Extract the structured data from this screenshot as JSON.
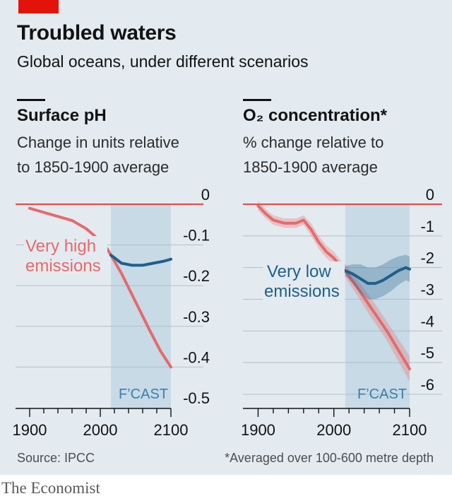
{
  "header": {
    "title": "Troubled waters",
    "subtitle": "Global oceans, under different scenarios"
  },
  "colors": {
    "background": "#e3ebf0",
    "accent_red": "#e3120b",
    "high_emissions": "#e8696b",
    "low_emissions": "#1f5f8b",
    "forecast_band": "#c2d7e4"
  },
  "chart_data": [
    {
      "type": "line",
      "title": "Surface pH",
      "subtitle_line1": "Change in units relative",
      "subtitle_line2": "to 1850-1900 average",
      "xlim": [
        1880,
        2100
      ],
      "ylim": [
        -0.5,
        0
      ],
      "yticks": [
        0,
        -0.1,
        -0.2,
        -0.3,
        -0.4,
        -0.5
      ],
      "ytick_labels": [
        "0",
        "-0.1",
        "-0.2",
        "-0.3",
        "-0.4",
        "-0.5"
      ],
      "xticks": [
        1900,
        2000,
        2100
      ],
      "xtick_labels": [
        "1900",
        "2000",
        "2100"
      ],
      "forecast": {
        "label": "F’CAST",
        "start": 2015,
        "end": 2100
      },
      "series": [
        {
          "name": "Very high emissions",
          "label_line1": "Very high",
          "label_line2": "emissions",
          "x": [
            1900,
            1920,
            1940,
            1960,
            1980,
            1990,
            2000,
            2010,
            2015,
            2030,
            2050,
            2070,
            2085,
            2100
          ],
          "y": [
            -0.01,
            -0.02,
            -0.03,
            -0.04,
            -0.06,
            -0.075,
            -0.09,
            -0.11,
            -0.125,
            -0.17,
            -0.24,
            -0.31,
            -0.36,
            -0.4
          ]
        },
        {
          "name": "Very low emissions",
          "x": [
            2015,
            2030,
            2045,
            2060,
            2075,
            2090,
            2100
          ],
          "y": [
            -0.125,
            -0.145,
            -0.15,
            -0.15,
            -0.145,
            -0.14,
            -0.135
          ]
        }
      ]
    },
    {
      "type": "line",
      "title": "O₂ concentration*",
      "subtitle_line1": "% change relative to",
      "subtitle_line2": "1850-1900 average",
      "xlim": [
        1880,
        2100
      ],
      "ylim": [
        -6,
        0
      ],
      "yticks": [
        0,
        -1,
        -2,
        -3,
        -4,
        -5,
        -6
      ],
      "ytick_labels": [
        "0",
        "-1",
        "-2",
        "-3",
        "-4",
        "-5",
        "-6"
      ],
      "xticks": [
        1900,
        2000,
        2100
      ],
      "xtick_labels": [
        "1900",
        "2000",
        "2100"
      ],
      "forecast": {
        "label": "F’CAST",
        "start": 2015,
        "end": 2100
      },
      "series": [
        {
          "name": "Very high emissions",
          "x": [
            1900,
            1910,
            1920,
            1935,
            1950,
            1960,
            1970,
            1980,
            1990,
            2000,
            2010,
            2015,
            2030,
            2050,
            2070,
            2085,
            2100
          ],
          "y": [
            -0.05,
            -0.3,
            -0.5,
            -0.6,
            -0.6,
            -0.5,
            -0.8,
            -1.2,
            -1.5,
            -1.7,
            -2.0,
            -2.1,
            -2.6,
            -3.3,
            -4.0,
            -4.6,
            -5.2
          ],
          "band": [
            0.15,
            0.15,
            0.15,
            0.15,
            0.15,
            0.15,
            0.2,
            0.2,
            0.2,
            0.2,
            0.2,
            0.2,
            0.25,
            0.3,
            0.3,
            0.35,
            0.4
          ]
        },
        {
          "name": "Very low emissions",
          "label_line1": "Very low",
          "label_line2": "emissions",
          "x": [
            2015,
            2025,
            2035,
            2045,
            2055,
            2065,
            2075,
            2085,
            2095,
            2100
          ],
          "y": [
            -2.1,
            -2.2,
            -2.35,
            -2.5,
            -2.5,
            -2.4,
            -2.25,
            -2.1,
            -2.0,
            -2.05
          ],
          "band": [
            0.15,
            0.3,
            0.45,
            0.5,
            0.5,
            0.5,
            0.5,
            0.45,
            0.4,
            0.4
          ]
        }
      ]
    }
  ],
  "footer": {
    "source": "Source: IPCC",
    "note": "*Averaged over 100-600 metre depth"
  },
  "brand": "The Economist"
}
